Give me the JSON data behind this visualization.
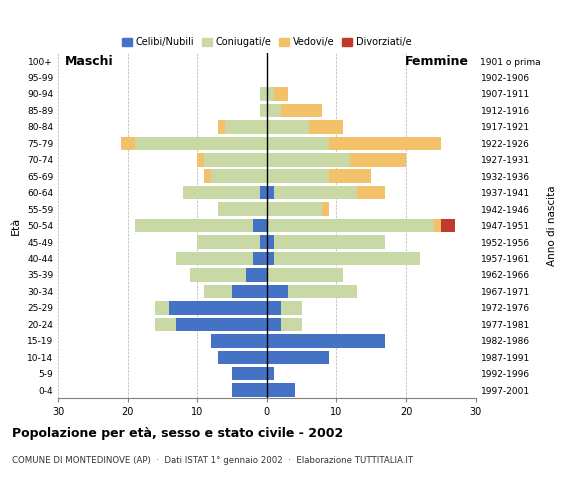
{
  "age_groups": [
    "0-4",
    "5-9",
    "10-14",
    "15-19",
    "20-24",
    "25-29",
    "30-34",
    "35-39",
    "40-44",
    "45-49",
    "50-54",
    "55-59",
    "60-64",
    "65-69",
    "70-74",
    "75-79",
    "80-84",
    "85-89",
    "90-94",
    "95-99",
    "100+"
  ],
  "birth_years": [
    "1997-2001",
    "1992-1996",
    "1987-1991",
    "1982-1986",
    "1977-1981",
    "1972-1976",
    "1967-1971",
    "1962-1966",
    "1957-1961",
    "1952-1956",
    "1947-1951",
    "1942-1946",
    "1937-1941",
    "1932-1936",
    "1927-1931",
    "1922-1926",
    "1917-1921",
    "1912-1916",
    "1907-1911",
    "1902-1906",
    "1901 o prima"
  ],
  "males": {
    "celibe": [
      5,
      5,
      7,
      8,
      13,
      14,
      5,
      3,
      2,
      1,
      2,
      0,
      1,
      0,
      0,
      0,
      0,
      0,
      0,
      0,
      0
    ],
    "coniugato": [
      0,
      0,
      0,
      0,
      3,
      2,
      4,
      8,
      11,
      9,
      17,
      7,
      11,
      8,
      9,
      19,
      6,
      1,
      1,
      0,
      0
    ],
    "vedovo": [
      0,
      0,
      0,
      0,
      0,
      0,
      0,
      0,
      0,
      0,
      0,
      0,
      0,
      1,
      1,
      2,
      1,
      0,
      0,
      0,
      0
    ],
    "divorziato": [
      0,
      0,
      0,
      0,
      0,
      0,
      0,
      0,
      0,
      0,
      0,
      0,
      0,
      0,
      0,
      0,
      0,
      0,
      0,
      0,
      0
    ]
  },
  "females": {
    "nubile": [
      4,
      1,
      9,
      17,
      2,
      2,
      3,
      0,
      1,
      1,
      0,
      0,
      1,
      0,
      0,
      0,
      0,
      0,
      0,
      0,
      0
    ],
    "coniugata": [
      0,
      0,
      0,
      0,
      3,
      3,
      10,
      11,
      21,
      16,
      24,
      8,
      12,
      9,
      12,
      9,
      6,
      2,
      1,
      0,
      0
    ],
    "vedova": [
      0,
      0,
      0,
      0,
      0,
      0,
      0,
      0,
      0,
      0,
      1,
      1,
      4,
      6,
      8,
      16,
      5,
      6,
      2,
      0,
      0
    ],
    "divorziata": [
      0,
      0,
      0,
      0,
      0,
      0,
      0,
      0,
      0,
      0,
      2,
      0,
      0,
      0,
      0,
      0,
      0,
      0,
      0,
      0,
      0
    ]
  },
  "color_celibe": "#4472C4",
  "color_coniugato": "#C8D9A5",
  "color_vedovo": "#F2C16A",
  "color_divorziato": "#C0392B",
  "xlim": 30,
  "title": "Popolazione per età, sesso e stato civile - 2002",
  "subtitle": "COMUNE DI MONTEDINOVE (AP)  ·  Dati ISTAT 1° gennaio 2002  ·  Elaborazione TUTTITALIA.IT",
  "ylabel_eta": "Età",
  "ylabel_anno": "Anno di nascita",
  "label_maschi": "Maschi",
  "label_femmine": "Femmine",
  "legend_labels": [
    "Celibi/Nubili",
    "Coniugati/e",
    "Vedovi/e",
    "Divorziati/e"
  ]
}
